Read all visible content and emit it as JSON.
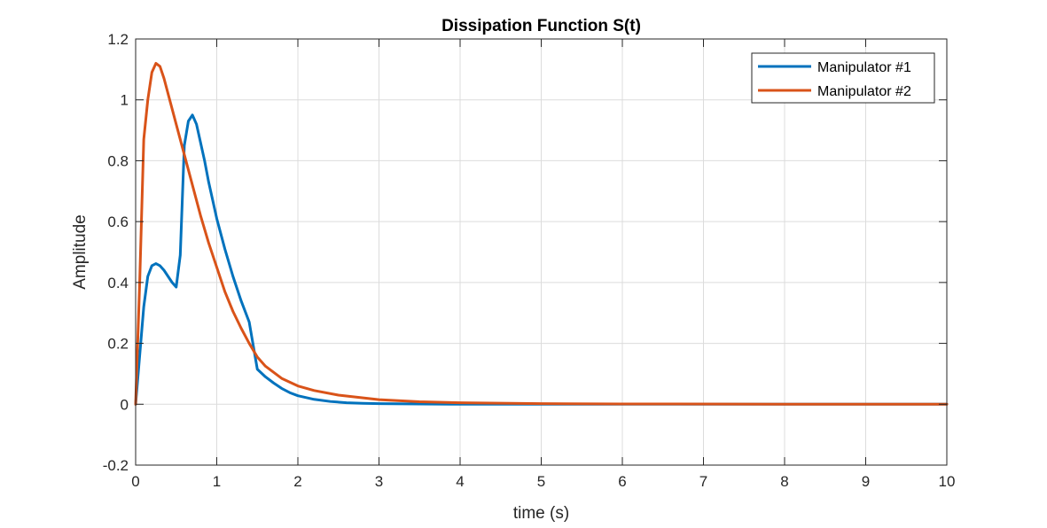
{
  "chart_data": {
    "type": "line",
    "title": "Dissipation Function S(t)",
    "xlabel": "time (s)",
    "ylabel": "Amplitude",
    "xlim": [
      0,
      10
    ],
    "ylim": [
      -0.2,
      1.2
    ],
    "xticks": [
      0,
      1,
      2,
      3,
      4,
      5,
      6,
      7,
      8,
      9,
      10
    ],
    "xtick_labels": [
      "0",
      "1",
      "2",
      "3",
      "4",
      "5",
      "6",
      "7",
      "8",
      "9",
      "10"
    ],
    "yticks": [
      -0.2,
      0,
      0.2,
      0.4,
      0.6,
      0.8,
      1,
      1.2
    ],
    "ytick_labels": [
      "-0.2",
      "0",
      "0.2",
      "0.4",
      "0.6",
      "0.8",
      "1",
      "1.2"
    ],
    "grid": true,
    "legend_position": "top-right",
    "series": [
      {
        "name": "Manipulator #1",
        "color": "#0072BD",
        "x": [
          0,
          0.05,
          0.1,
          0.15,
          0.2,
          0.25,
          0.3,
          0.35,
          0.4,
          0.45,
          0.5,
          0.55,
          0.6,
          0.65,
          0.7,
          0.75,
          0.8,
          0.85,
          0.9,
          0.95,
          1.0,
          1.1,
          1.2,
          1.3,
          1.4,
          1.5,
          1.6,
          1.7,
          1.8,
          1.9,
          2.0,
          2.2,
          2.4,
          2.6,
          2.8,
          3.0,
          3.5,
          4.0,
          5.0,
          6.0,
          8.0,
          10.0
        ],
        "y": [
          0,
          0.16,
          0.32,
          0.42,
          0.455,
          0.462,
          0.455,
          0.44,
          0.42,
          0.4,
          0.385,
          0.49,
          0.85,
          0.93,
          0.95,
          0.92,
          0.86,
          0.8,
          0.73,
          0.67,
          0.61,
          0.51,
          0.42,
          0.34,
          0.27,
          0.115,
          0.09,
          0.07,
          0.052,
          0.038,
          0.028,
          0.016,
          0.009,
          0.005,
          0.003,
          0.002,
          0.001,
          0.0,
          0.0,
          0.0,
          0.0,
          0.0
        ]
      },
      {
        "name": "Manipulator #2",
        "color": "#D95319",
        "x": [
          0,
          0.05,
          0.1,
          0.15,
          0.2,
          0.25,
          0.3,
          0.35,
          0.4,
          0.5,
          0.6,
          0.7,
          0.8,
          0.9,
          1.0,
          1.1,
          1.2,
          1.3,
          1.4,
          1.5,
          1.6,
          1.8,
          2.0,
          2.2,
          2.5,
          3.0,
          3.5,
          4.0,
          5.0,
          6.0,
          8.0,
          10.0
        ],
        "y": [
          0,
          0.4,
          0.87,
          1.0,
          1.09,
          1.12,
          1.11,
          1.07,
          1.02,
          0.92,
          0.82,
          0.72,
          0.62,
          0.53,
          0.45,
          0.37,
          0.305,
          0.25,
          0.2,
          0.155,
          0.125,
          0.085,
          0.06,
          0.045,
          0.03,
          0.015,
          0.008,
          0.005,
          0.002,
          0.001,
          0.0,
          0.0
        ]
      }
    ]
  }
}
